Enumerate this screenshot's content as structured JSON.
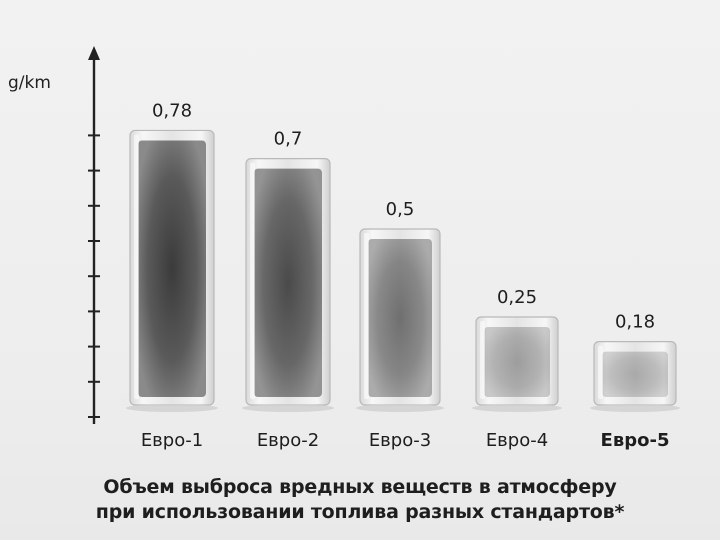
{
  "chart_data": {
    "type": "bar",
    "ylabel": "g/km",
    "categories": [
      "Евро-1",
      "Евро-2",
      "Евро-3",
      "Евро-4",
      "Евро-5"
    ],
    "values": [
      0.78,
      0.7,
      0.5,
      0.25,
      0.18
    ],
    "value_labels": [
      "0,78",
      "0,7",
      "0,5",
      "0,25",
      "0,18"
    ],
    "highlight_category": "Евро-5",
    "ylim": [
      0,
      0.9
    ],
    "y_ticks": [
      0,
      0.1,
      0.2,
      0.3,
      0.4,
      0.5,
      0.6,
      0.7,
      0.8
    ],
    "grid": false,
    "caption_lines": [
      "Объем выброса вредных веществ в атмосферу",
      "при использовании топлива разных стандартов*"
    ]
  }
}
